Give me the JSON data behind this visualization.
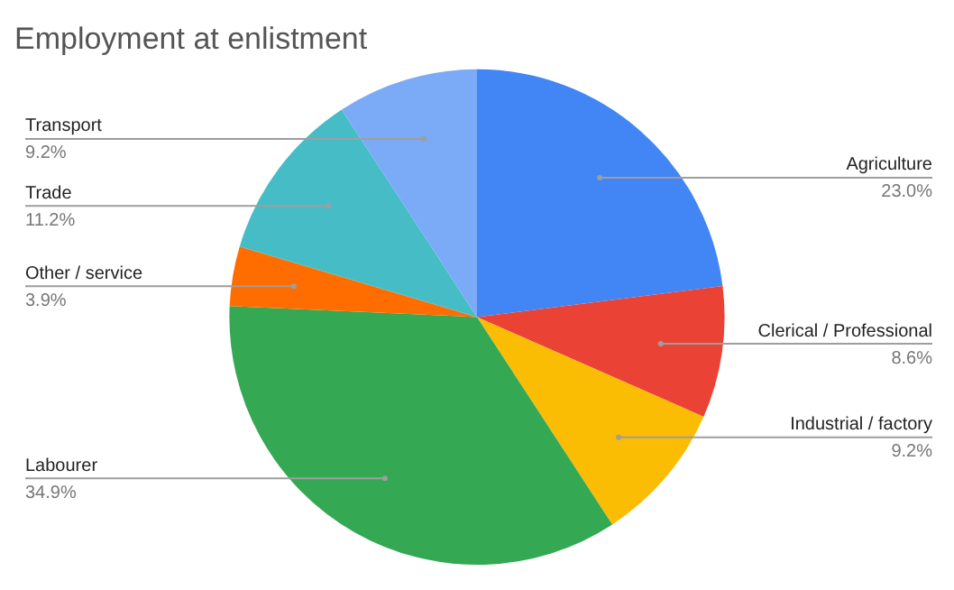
{
  "chart_data": {
    "type": "pie",
    "title": "Employment at enlistment",
    "categories": [
      "Agriculture",
      "Clerical / Professional",
      "Industrial / factory",
      "Labourer",
      "Other / service",
      "Trade",
      "Transport"
    ],
    "values": [
      23.0,
      8.6,
      9.2,
      34.9,
      3.9,
      11.2,
      9.2
    ],
    "value_labels": [
      "23.0%",
      "8.6%",
      "9.2%",
      "34.9%",
      "3.9%",
      "11.2%",
      "9.2%"
    ],
    "colors": [
      "#4285f4",
      "#ea4335",
      "#fbbc04",
      "#34a853",
      "#ff6d01",
      "#46bdc6",
      "#7baaf7"
    ],
    "legend": false
  }
}
